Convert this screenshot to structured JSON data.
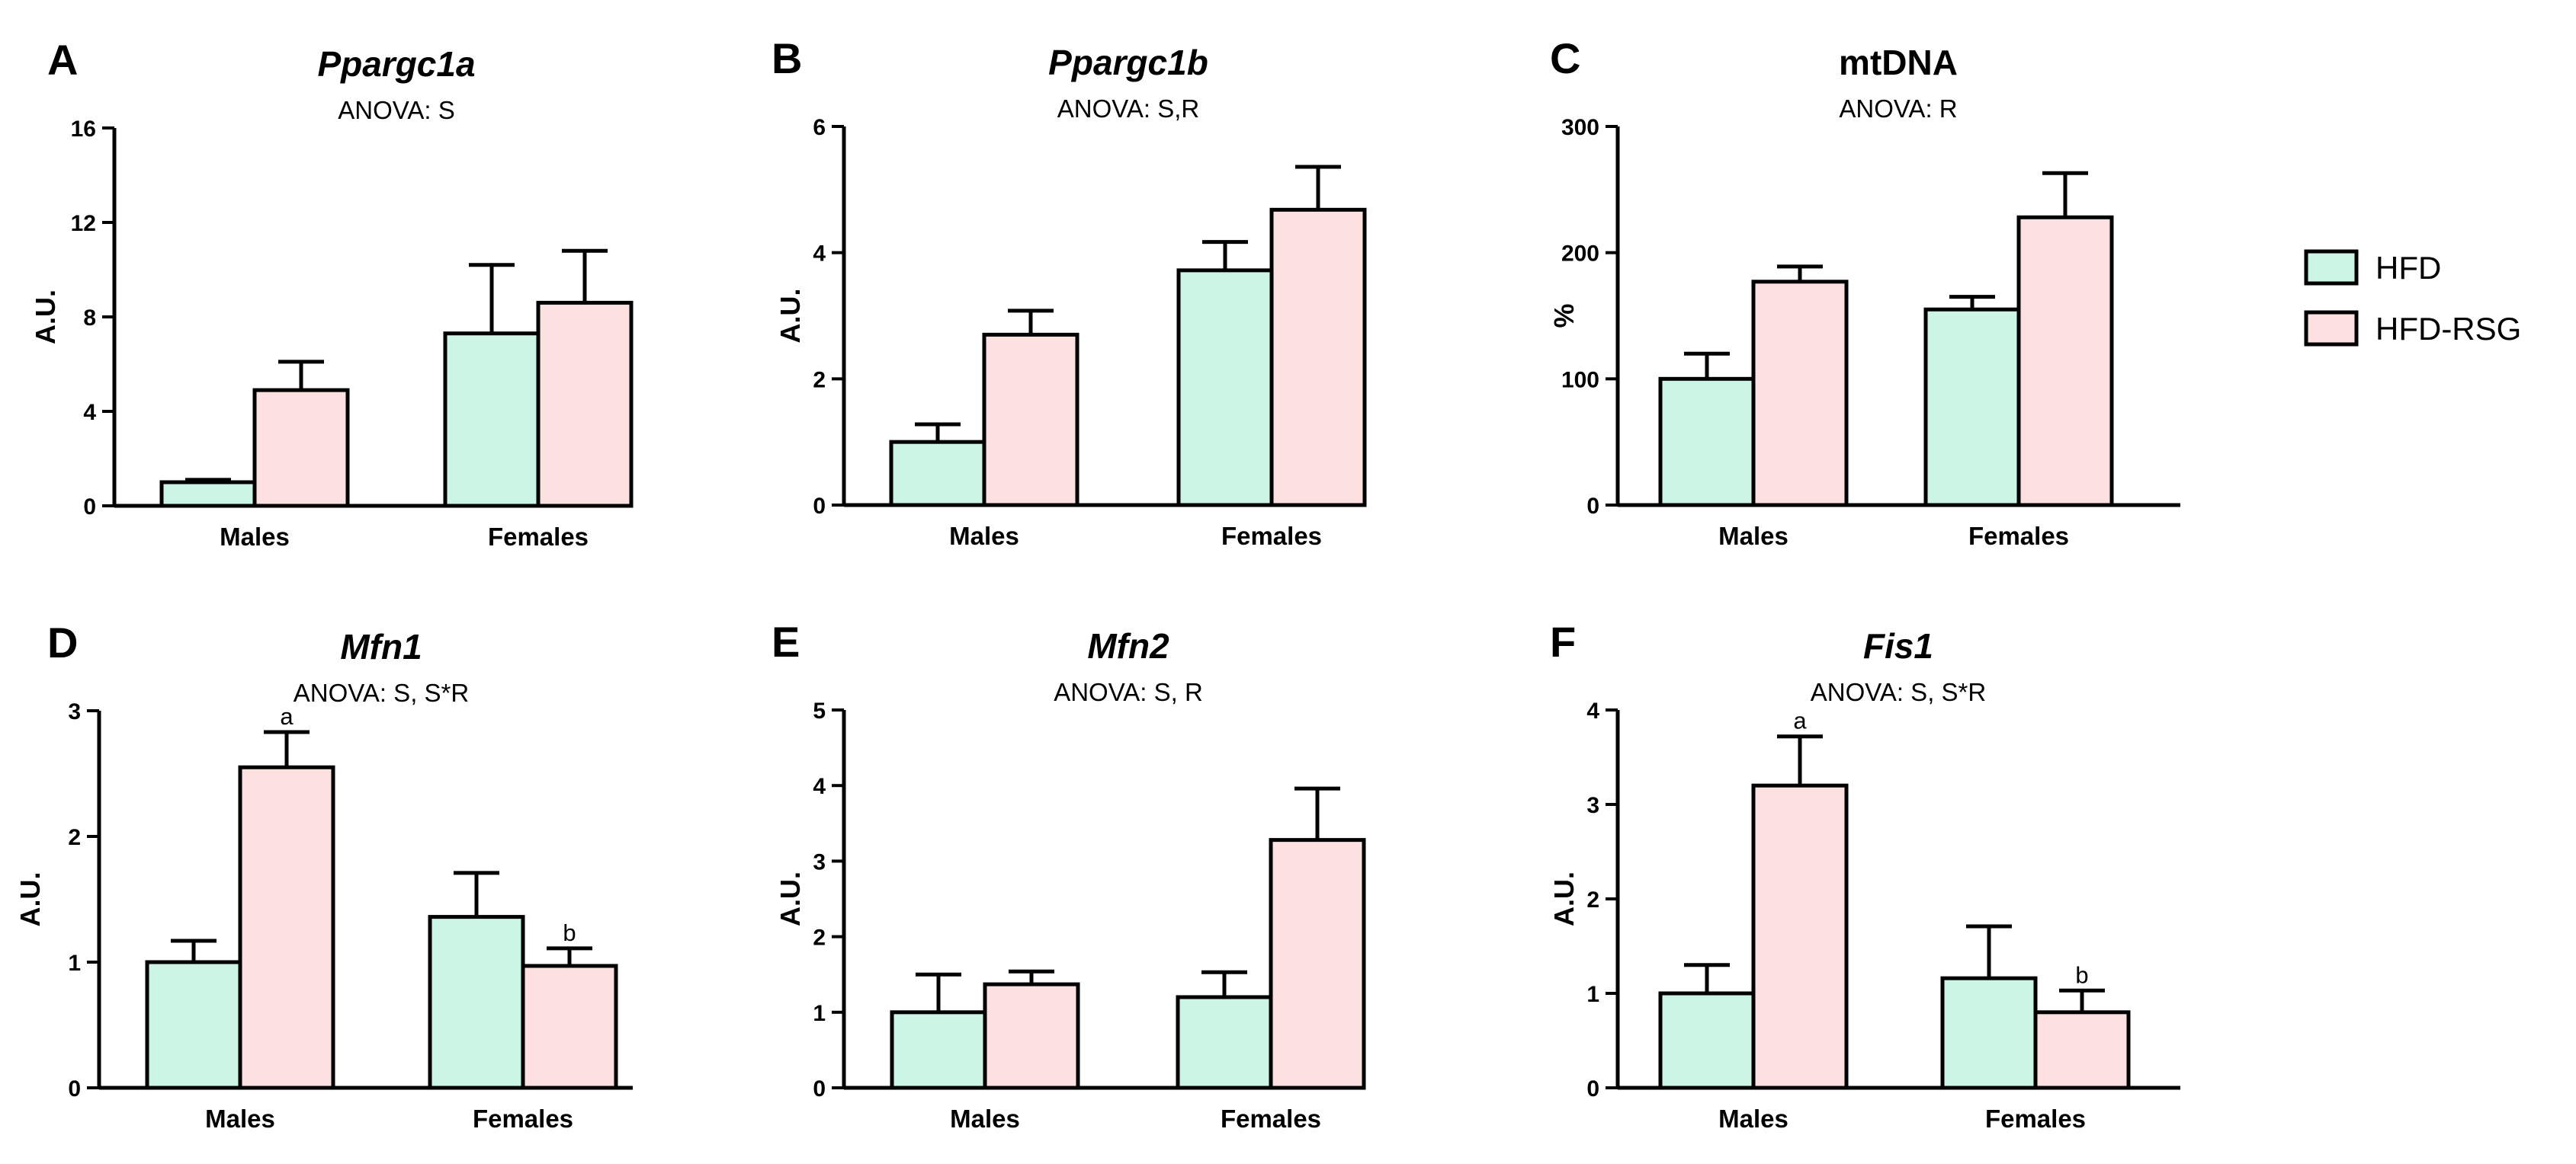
{
  "colors": {
    "HFD": "#cdf5e6",
    "HFD-RSG": "#fde0e0",
    "stroke": "#000000"
  },
  "legend": [
    {
      "series": "HFD",
      "label": "HFD"
    },
    {
      "series": "HFD-RSG",
      "label": "HFD-RSG"
    }
  ],
  "chart_data": [
    {
      "panel": "A",
      "type": "bar",
      "title": "Ppargc1a",
      "title_italic": true,
      "subtitle": "ANOVA: S",
      "ylabel": "A.U.",
      "ylim": [
        0,
        16
      ],
      "yticks": [
        0,
        4,
        8,
        12,
        16
      ],
      "categories": [
        "Males",
        "Females"
      ],
      "series": [
        {
          "name": "HFD",
          "values": [
            1.0,
            7.3
          ],
          "errors": [
            0.1,
            2.9
          ],
          "labels": [
            "",
            ""
          ]
        },
        {
          "name": "HFD-RSG",
          "values": [
            4.9,
            8.6
          ],
          "errors": [
            1.2,
            2.2
          ],
          "labels": [
            "",
            ""
          ]
        }
      ]
    },
    {
      "panel": "B",
      "type": "bar",
      "title": "Ppargc1b",
      "title_italic": true,
      "subtitle": "ANOVA: S,R",
      "ylabel": "A.U.",
      "ylim": [
        0,
        6
      ],
      "yticks": [
        0,
        2,
        4,
        6
      ],
      "categories": [
        "Males",
        "Females"
      ],
      "series": [
        {
          "name": "HFD",
          "values": [
            1.0,
            3.72
          ],
          "errors": [
            0.28,
            0.45
          ],
          "labels": [
            "",
            ""
          ]
        },
        {
          "name": "HFD-RSG",
          "values": [
            2.7,
            4.68
          ],
          "errors": [
            0.38,
            0.68
          ],
          "labels": [
            "",
            ""
          ]
        }
      ]
    },
    {
      "panel": "C",
      "type": "bar",
      "title": "mtDNA",
      "title_italic": false,
      "subtitle": "ANOVA: R",
      "ylabel": "%",
      "ylim": [
        0,
        300
      ],
      "yticks": [
        0,
        100,
        200,
        300
      ],
      "categories": [
        "Males",
        "Females"
      ],
      "series": [
        {
          "name": "HFD",
          "values": [
            100,
            155
          ],
          "errors": [
            20,
            10
          ],
          "labels": [
            "",
            ""
          ]
        },
        {
          "name": "HFD-RSG",
          "values": [
            177,
            228
          ],
          "errors": [
            12,
            35
          ],
          "labels": [
            "",
            ""
          ]
        }
      ]
    },
    {
      "panel": "D",
      "type": "bar",
      "title": "Mfn1",
      "title_italic": true,
      "subtitle": "ANOVA: S, S*R",
      "ylabel": "A.U.",
      "ylim": [
        0,
        3
      ],
      "yticks": [
        0,
        1,
        2,
        3
      ],
      "categories": [
        "Males",
        "Females"
      ],
      "series": [
        {
          "name": "HFD",
          "values": [
            1.0,
            1.36
          ],
          "errors": [
            0.17,
            0.35
          ],
          "labels": [
            "",
            ""
          ]
        },
        {
          "name": "HFD-RSG",
          "values": [
            2.55,
            0.97
          ],
          "errors": [
            0.28,
            0.14
          ],
          "labels": [
            "a",
            "b"
          ]
        }
      ]
    },
    {
      "panel": "E",
      "type": "bar",
      "title": "Mfn2",
      "title_italic": true,
      "subtitle": "ANOVA: S, R",
      "ylabel": "A.U.",
      "ylim": [
        0,
        5
      ],
      "yticks": [
        0,
        1,
        2,
        3,
        4,
        5
      ],
      "categories": [
        "Males",
        "Females"
      ],
      "series": [
        {
          "name": "HFD",
          "values": [
            1.0,
            1.2
          ],
          "errors": [
            0.5,
            0.33
          ],
          "labels": [
            "",
            ""
          ]
        },
        {
          "name": "HFD-RSG",
          "values": [
            1.37,
            3.28
          ],
          "errors": [
            0.17,
            0.68
          ],
          "labels": [
            "",
            ""
          ]
        }
      ]
    },
    {
      "panel": "F",
      "type": "bar",
      "title": "Fis1",
      "title_italic": true,
      "subtitle": "ANOVA: S, S*R",
      "ylabel": "A.U.",
      "ylim": [
        0,
        4
      ],
      "yticks": [
        0,
        1,
        2,
        3,
        4
      ],
      "categories": [
        "Males",
        "Females"
      ],
      "series": [
        {
          "name": "HFD",
          "values": [
            1.0,
            1.16
          ],
          "errors": [
            0.3,
            0.55
          ],
          "labels": [
            "",
            ""
          ]
        },
        {
          "name": "HFD-RSG",
          "values": [
            3.2,
            0.8
          ],
          "errors": [
            0.52,
            0.23
          ],
          "labels": [
            "a",
            "b"
          ]
        }
      ]
    }
  ]
}
